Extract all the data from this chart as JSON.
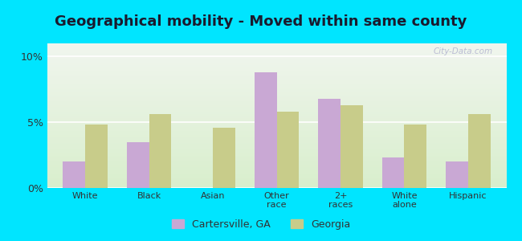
{
  "title": "Geographical mobility - Moved within same county",
  "categories": [
    "White",
    "Black",
    "Asian",
    "Other\nrace",
    "2+\nraces",
    "White\nalone",
    "Hispanic"
  ],
  "cartersville_values": [
    2.0,
    3.5,
    0.0,
    8.8,
    6.8,
    2.3,
    2.0
  ],
  "georgia_values": [
    4.8,
    5.6,
    4.6,
    5.8,
    6.3,
    4.8,
    5.6
  ],
  "cartersville_color": "#c9a8d4",
  "georgia_color": "#c8cc8a",
  "background_outer": "#00e5ff",
  "background_inner_top": "#f0f5ee",
  "background_inner_bottom": "#d8eecc",
  "ylim": [
    0,
    11
  ],
  "yticks": [
    0,
    5,
    10
  ],
  "ytick_labels": [
    "0%",
    "5%",
    "10%"
  ],
  "grid_color": "#ffffff",
  "legend_labels": [
    "Cartersville, GA",
    "Georgia"
  ],
  "bar_width": 0.35,
  "title_fontsize": 13,
  "watermark": "City-Data.com"
}
